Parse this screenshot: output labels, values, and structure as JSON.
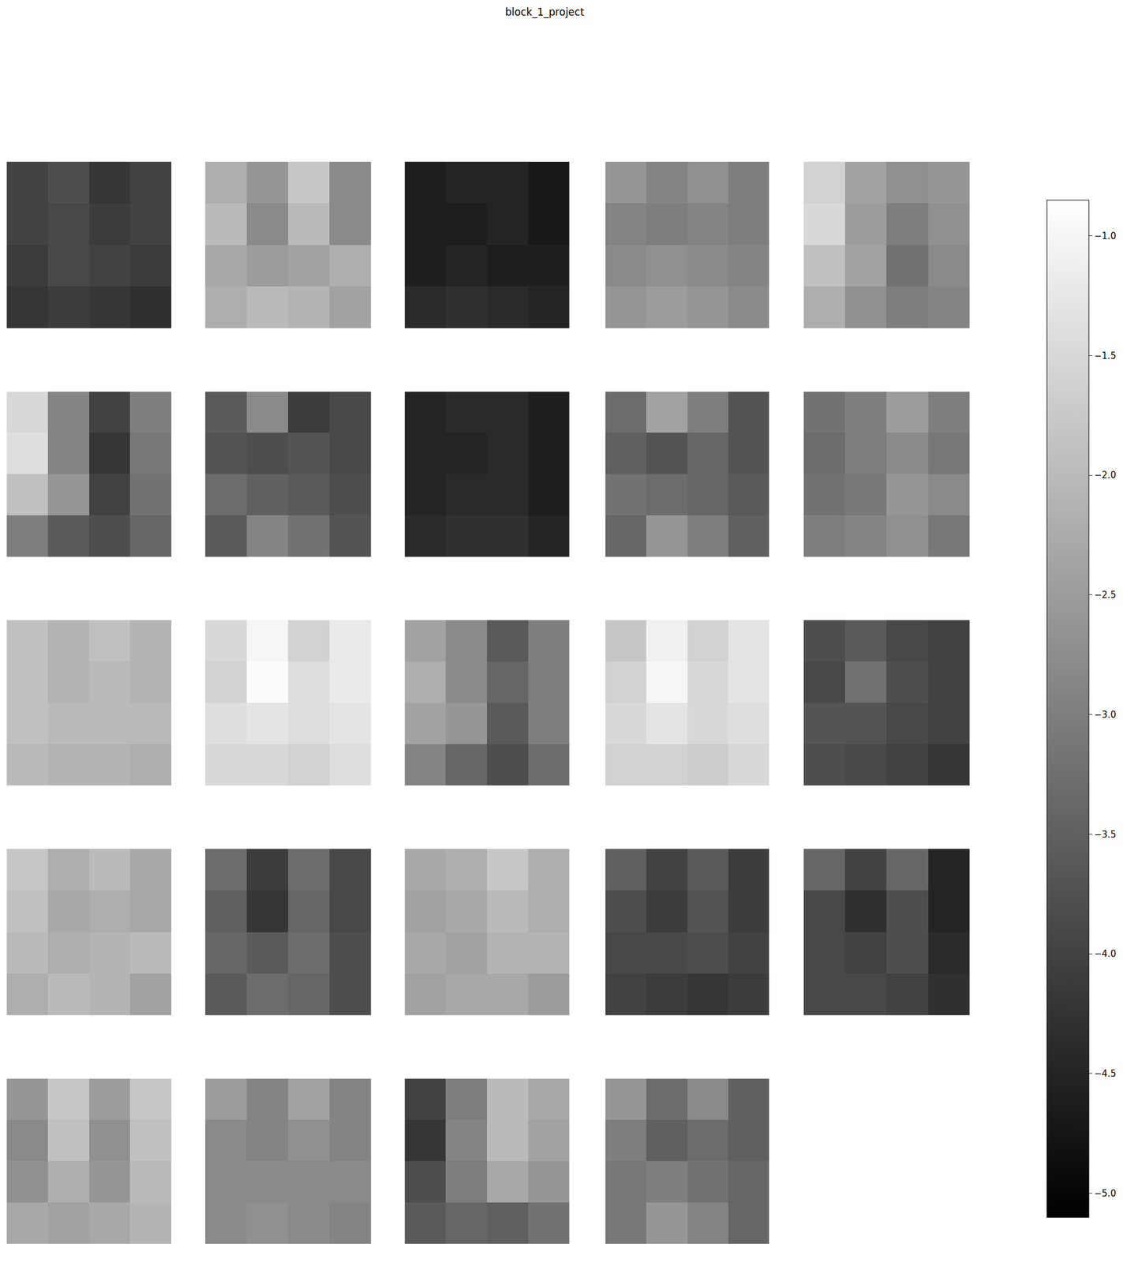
{
  "chart_data": {
    "type": "heatmap",
    "title": "block_1_project",
    "color": "gray",
    "tick_labels": false,
    "zlim": [
      -5.1,
      -0.85
    ],
    "colorbar_ticks": [
      {
        "value": -1.0,
        "label": "−1.0"
      },
      {
        "value": -1.5,
        "label": "−1.5"
      },
      {
        "value": -2.0,
        "label": "−2.0"
      },
      {
        "value": -2.5,
        "label": "−2.5"
      },
      {
        "value": -3.0,
        "label": "−3.0"
      },
      {
        "value": -3.5,
        "label": "−3.5"
      },
      {
        "value": -4.0,
        "label": "−4.0"
      },
      {
        "value": -4.5,
        "label": "−4.5"
      },
      {
        "value": -5.0,
        "label": "−5.0"
      }
    ],
    "panels": [
      [
        [
          -4.0,
          -3.8,
          -4.2,
          -4.0
        ],
        [
          -4.0,
          -3.9,
          -4.1,
          -4.0
        ],
        [
          -4.1,
          -3.9,
          -4.0,
          -4.1
        ],
        [
          -4.2,
          -4.1,
          -4.2,
          -4.3
        ]
      ],
      [
        [
          -2.2,
          -2.6,
          -1.8,
          -2.8
        ],
        [
          -2.0,
          -2.8,
          -2.0,
          -2.8
        ],
        [
          -2.3,
          -2.5,
          -2.4,
          -2.2
        ],
        [
          -2.2,
          -2.0,
          -2.1,
          -2.4
        ]
      ],
      [
        [
          -4.6,
          -4.5,
          -4.5,
          -4.7
        ],
        [
          -4.6,
          -4.6,
          -4.5,
          -4.7
        ],
        [
          -4.6,
          -4.5,
          -4.6,
          -4.6
        ],
        [
          -4.4,
          -4.3,
          -4.4,
          -4.5
        ]
      ],
      [
        [
          -2.6,
          -2.9,
          -2.7,
          -3.0
        ],
        [
          -2.9,
          -3.0,
          -2.9,
          -3.0
        ],
        [
          -2.8,
          -2.7,
          -2.8,
          -2.9
        ],
        [
          -2.6,
          -2.5,
          -2.6,
          -2.8
        ]
      ],
      [
        [
          -1.6,
          -2.4,
          -2.7,
          -2.6
        ],
        [
          -1.5,
          -2.5,
          -3.0,
          -2.7
        ],
        [
          -1.9,
          -2.4,
          -3.2,
          -2.8
        ],
        [
          -2.2,
          -2.7,
          -3.0,
          -2.9
        ]
      ],
      [
        [
          -1.5,
          -2.9,
          -4.0,
          -3.0
        ],
        [
          -1.4,
          -2.9,
          -4.2,
          -3.1
        ],
        [
          -1.9,
          -2.6,
          -4.0,
          -3.2
        ],
        [
          -3.0,
          -3.6,
          -3.8,
          -3.4
        ]
      ],
      [
        [
          -3.6,
          -2.8,
          -4.1,
          -3.9
        ],
        [
          -3.7,
          -3.8,
          -3.7,
          -3.9
        ],
        [
          -3.3,
          -3.5,
          -3.6,
          -3.8
        ],
        [
          -3.6,
          -2.9,
          -3.2,
          -3.7
        ]
      ],
      [
        [
          -4.5,
          -4.4,
          -4.4,
          -4.6
        ],
        [
          -4.5,
          -4.5,
          -4.4,
          -4.6
        ],
        [
          -4.5,
          -4.4,
          -4.4,
          -4.6
        ],
        [
          -4.4,
          -4.3,
          -4.3,
          -4.5
        ]
      ],
      [
        [
          -3.3,
          -2.4,
          -3.0,
          -3.7
        ],
        [
          -3.5,
          -3.7,
          -3.4,
          -3.7
        ],
        [
          -3.2,
          -3.3,
          -3.4,
          -3.6
        ],
        [
          -3.4,
          -2.6,
          -3.0,
          -3.5
        ]
      ],
      [
        [
          -3.2,
          -3.0,
          -2.5,
          -3.0
        ],
        [
          -3.3,
          -3.0,
          -2.8,
          -3.1
        ],
        [
          -3.2,
          -3.1,
          -2.6,
          -2.8
        ],
        [
          -3.0,
          -2.9,
          -2.7,
          -3.1
        ]
      ],
      [
        [
          -1.9,
          -2.1,
          -1.9,
          -2.1
        ],
        [
          -1.9,
          -2.1,
          -2.0,
          -2.1
        ],
        [
          -1.9,
          -2.0,
          -2.0,
          -2.0
        ],
        [
          -2.0,
          -2.1,
          -2.1,
          -2.2
        ]
      ],
      [
        [
          -1.5,
          -1.0,
          -1.6,
          -1.2
        ],
        [
          -1.6,
          -0.9,
          -1.4,
          -1.2
        ],
        [
          -1.4,
          -1.3,
          -1.4,
          -1.3
        ],
        [
          -1.5,
          -1.5,
          -1.6,
          -1.4
        ]
      ],
      [
        [
          -2.4,
          -2.8,
          -3.6,
          -3.0
        ],
        [
          -2.2,
          -2.8,
          -3.4,
          -3.0
        ],
        [
          -2.4,
          -2.6,
          -3.6,
          -3.0
        ],
        [
          -2.9,
          -3.4,
          -3.8,
          -3.3
        ]
      ],
      [
        [
          -1.8,
          -1.1,
          -1.6,
          -1.3
        ],
        [
          -1.6,
          -1.0,
          -1.5,
          -1.3
        ],
        [
          -1.5,
          -1.3,
          -1.5,
          -1.4
        ],
        [
          -1.6,
          -1.6,
          -1.7,
          -1.5
        ]
      ],
      [
        [
          -3.8,
          -3.6,
          -3.9,
          -4.0
        ],
        [
          -3.9,
          -3.2,
          -3.8,
          -4.0
        ],
        [
          -3.7,
          -3.7,
          -3.9,
          -4.0
        ],
        [
          -3.8,
          -3.9,
          -4.0,
          -4.2
        ]
      ],
      [
        [
          -1.8,
          -2.2,
          -2.0,
          -2.3
        ],
        [
          -1.9,
          -2.3,
          -2.2,
          -2.3
        ],
        [
          -2.0,
          -2.2,
          -2.1,
          -2.0
        ],
        [
          -2.2,
          -2.0,
          -2.1,
          -2.4
        ]
      ],
      [
        [
          -3.3,
          -4.1,
          -3.3,
          -3.9
        ],
        [
          -3.5,
          -4.2,
          -3.4,
          -3.9
        ],
        [
          -3.4,
          -3.6,
          -3.3,
          -3.8
        ],
        [
          -3.6,
          -3.3,
          -3.4,
          -3.8
        ]
      ],
      [
        [
          -2.3,
          -2.2,
          -1.8,
          -2.2
        ],
        [
          -2.4,
          -2.3,
          -2.0,
          -2.2
        ],
        [
          -2.3,
          -2.4,
          -2.1,
          -2.1
        ],
        [
          -2.4,
          -2.3,
          -2.3,
          -2.5
        ]
      ],
      [
        [
          -3.5,
          -4.0,
          -3.6,
          -4.1
        ],
        [
          -3.8,
          -4.1,
          -3.7,
          -4.1
        ],
        [
          -3.9,
          -3.9,
          -3.8,
          -4.0
        ],
        [
          -4.0,
          -4.1,
          -4.2,
          -4.1
        ]
      ],
      [
        [
          -3.4,
          -4.0,
          -3.4,
          -4.5
        ],
        [
          -3.9,
          -4.3,
          -3.8,
          -4.5
        ],
        [
          -3.9,
          -4.0,
          -3.8,
          -4.4
        ],
        [
          -3.9,
          -3.9,
          -4.0,
          -4.3
        ]
      ],
      [
        [
          -2.6,
          -1.8,
          -2.5,
          -1.8
        ],
        [
          -2.8,
          -1.9,
          -2.7,
          -1.9
        ],
        [
          -2.7,
          -2.2,
          -2.6,
          -2.0
        ],
        [
          -2.3,
          -2.4,
          -2.3,
          -2.1
        ]
      ],
      [
        [
          -2.5,
          -2.9,
          -2.4,
          -2.9
        ],
        [
          -2.8,
          -2.9,
          -2.7,
          -2.9
        ],
        [
          -2.8,
          -2.8,
          -2.8,
          -2.8
        ],
        [
          -2.8,
          -2.7,
          -2.8,
          -2.9
        ]
      ],
      [
        [
          -4.0,
          -3.0,
          -2.0,
          -2.3
        ],
        [
          -4.2,
          -2.9,
          -2.0,
          -2.4
        ],
        [
          -3.8,
          -3.0,
          -2.3,
          -2.6
        ],
        [
          -3.6,
          -3.4,
          -3.5,
          -3.2
        ]
      ],
      [
        [
          -2.6,
          -3.3,
          -2.8,
          -3.5
        ],
        [
          -3.0,
          -3.5,
          -3.3,
          -3.5
        ],
        [
          -3.1,
          -3.0,
          -3.2,
          -3.4
        ],
        [
          -3.1,
          -2.6,
          -2.9,
          -3.4
        ]
      ]
    ]
  }
}
